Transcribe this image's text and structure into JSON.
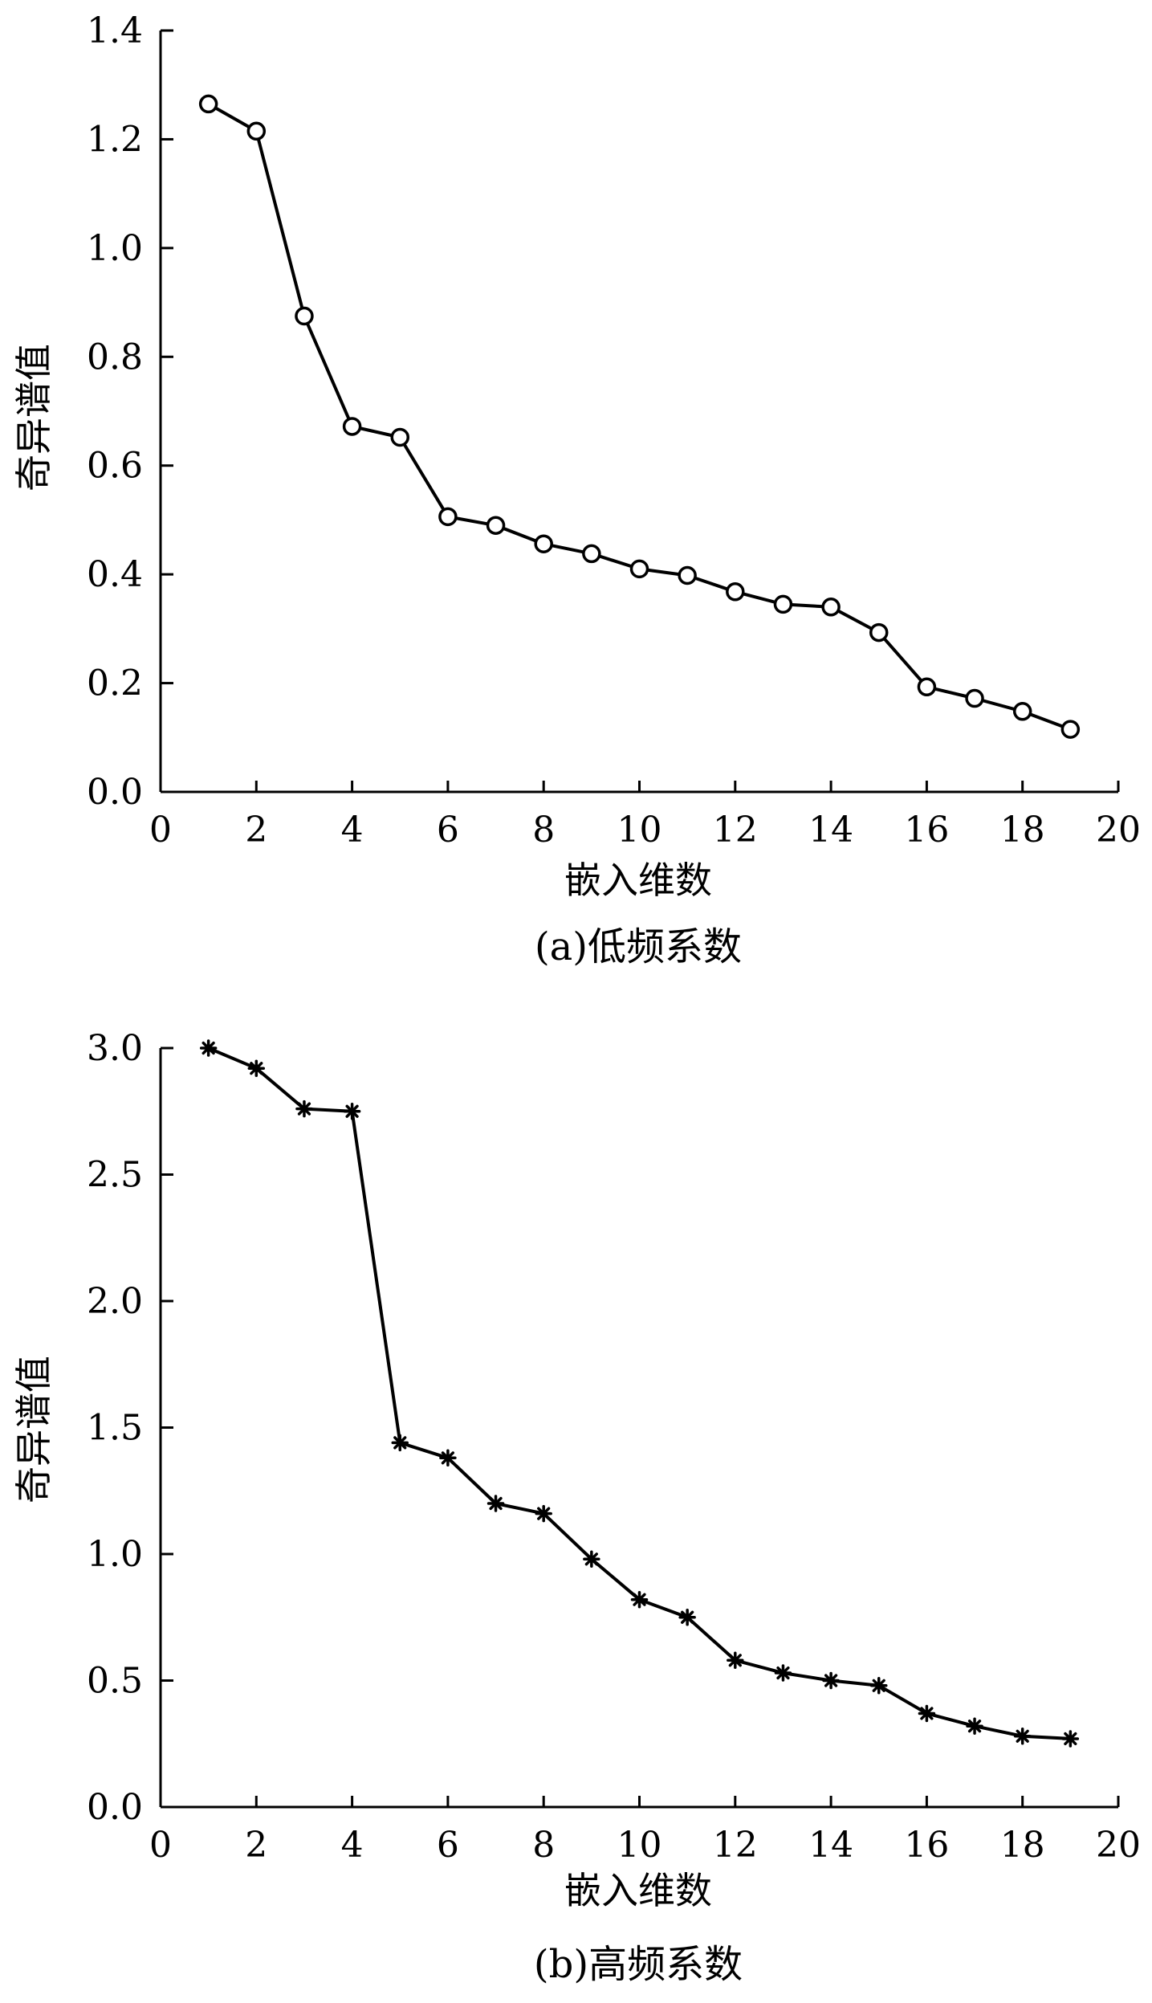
{
  "chart_data": [
    {
      "type": "line",
      "marker": "circle",
      "caption": "(a)低频系数",
      "xlabel": "嵌入维数",
      "ylabel": "奇异谱值",
      "xlim": [
        0,
        20
      ],
      "ylim": [
        0,
        1.4
      ],
      "xticks": [
        "0",
        "2",
        "4",
        "6",
        "8",
        "10",
        "12",
        "14",
        "16",
        "18",
        "20"
      ],
      "yticks": [
        "0.0",
        "0.2",
        "0.4",
        "0.6",
        "0.8",
        "1.0",
        "1.2",
        "1.4"
      ],
      "x": [
        1,
        2,
        3,
        4,
        5,
        6,
        7,
        8,
        9,
        10,
        11,
        12,
        13,
        14,
        15,
        16,
        17,
        18,
        19
      ],
      "values": [
        1.265,
        1.215,
        0.875,
        0.672,
        0.652,
        0.506,
        0.49,
        0.456,
        0.438,
        0.41,
        0.398,
        0.368,
        0.345,
        0.34,
        0.293,
        0.193,
        0.172,
        0.148,
        0.115
      ],
      "grid": false,
      "line_color": "#000000"
    },
    {
      "type": "line",
      "marker": "asterisk",
      "caption": "(b)高频系数",
      "xlabel": "嵌入维数",
      "ylabel": "奇异谱值",
      "xlim": [
        0,
        20
      ],
      "ylim": [
        0,
        3.0
      ],
      "xticks": [
        "0",
        "2",
        "4",
        "6",
        "8",
        "10",
        "12",
        "14",
        "16",
        "18",
        "20"
      ],
      "yticks": [
        "0.0",
        "0.5",
        "1.0",
        "1.5",
        "2.0",
        "2.5",
        "3.0"
      ],
      "x": [
        1,
        2,
        3,
        4,
        5,
        6,
        7,
        8,
        9,
        10,
        11,
        12,
        13,
        14,
        15,
        16,
        17,
        18,
        19
      ],
      "values": [
        3.0,
        2.92,
        2.76,
        2.75,
        1.44,
        1.38,
        1.2,
        1.16,
        0.98,
        0.82,
        0.75,
        0.58,
        0.53,
        0.5,
        0.48,
        0.37,
        0.32,
        0.28,
        0.27
      ],
      "grid": false,
      "line_color": "#000000"
    }
  ]
}
